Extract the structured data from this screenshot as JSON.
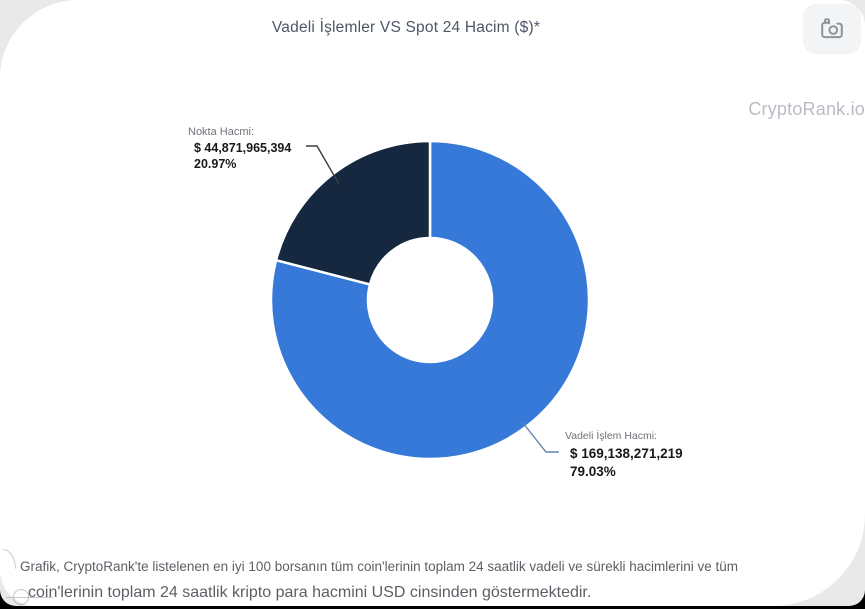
{
  "page": {
    "title": "Vadeli İşlemler VS Spot 24 Hacim ($)*",
    "watermark": "CryptoRank.io",
    "footnote_line1": "Grafik, CryptoRank'te listelenen en iyi 100 borsanın tüm coin'lerinin toplam 24 saatlik vadeli ve sürekli hacimlerini ve tüm",
    "footnote_line2": "coin'lerinin toplam 24 saatlik kripto para hacmini USD cinsinden göstermektedir."
  },
  "toolbar": {
    "screenshot_button_icon": "camera-icon"
  },
  "chart_data": {
    "type": "pie",
    "donut": true,
    "title": "Vadeli İşlemler VS Spot 24 Hacim ($)*",
    "start_angle_deg": 0,
    "direction": "clockwise",
    "inner_radius_ratio": 0.39,
    "legend_position": "none",
    "slices": [
      {
        "name": "futures-volume",
        "label": "Vadeli İşlem Hacmi:",
        "value_usd": "$ 169,138,271,219",
        "value": 169138271219,
        "percent": 79.03,
        "percent_label": "79.03%",
        "color": "#3679d8"
      },
      {
        "name": "spot-volume",
        "label": "Nokta Hacmi:",
        "value_usd": "$ 44,871,965,394",
        "value": 44871965394,
        "percent": 20.97,
        "percent_label": "20.97%",
        "color": "#152840"
      }
    ],
    "colors": {
      "futures_blue": "#3679d8",
      "spot_navy": "#152840",
      "gap": "#ffffff"
    }
  }
}
